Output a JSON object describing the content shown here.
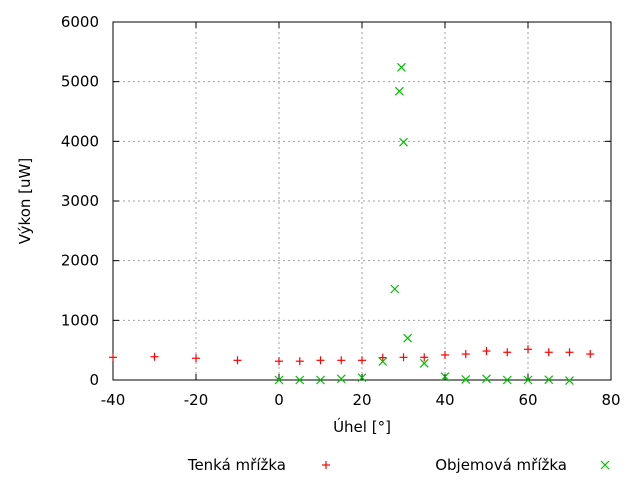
{
  "chart_data": {
    "type": "scatter",
    "title": "",
    "xlabel": "Úhel [°]",
    "ylabel": "Výkon [uW]",
    "xlim": [
      -40,
      80
    ],
    "ylim": [
      0,
      6000
    ],
    "xticks": [
      "-40",
      "-20",
      "0",
      "20",
      "40",
      "60",
      "80"
    ],
    "yticks": [
      "0",
      "1000",
      "2000",
      "3000",
      "4000",
      "5000",
      "6000"
    ],
    "grid": true,
    "legend_position": "bottom",
    "series": [
      {
        "name": "Tenká mřížka",
        "marker": "+",
        "color": "#ff0000",
        "x": [
          -40,
          -30,
          -20,
          -10,
          0,
          5,
          10,
          15,
          20,
          25,
          30,
          35,
          40,
          45,
          50,
          55,
          60,
          65,
          70,
          75
        ],
        "y": [
          380,
          390,
          365,
          330,
          315,
          315,
          330,
          330,
          330,
          375,
          380,
          380,
          420,
          435,
          485,
          465,
          515,
          465,
          465,
          435
        ]
      },
      {
        "name": "Objemová mřížka",
        "marker": "x",
        "color": "#00c000",
        "x": [
          0,
          5,
          10,
          15,
          20,
          25,
          27.9,
          29,
          29.5,
          30,
          31,
          35,
          40,
          45,
          50,
          55,
          60,
          65,
          70
        ],
        "y": [
          0,
          0,
          0,
          20,
          40,
          310,
          1525,
          4840,
          5240,
          3985,
          700,
          280,
          55,
          10,
          20,
          0,
          0,
          5,
          -10
        ]
      }
    ]
  }
}
